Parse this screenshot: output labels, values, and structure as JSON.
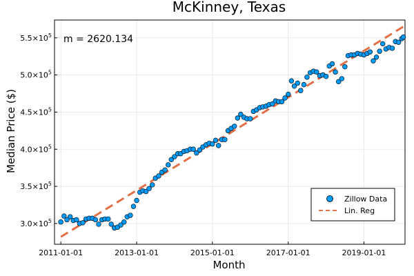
{
  "chart_data": {
    "type": "scatter",
    "title": "McKinney, Texas",
    "xlabel": "Month",
    "ylabel": "Median Price ($)",
    "xlim": [
      "2010-11-01",
      "2020-02-01"
    ],
    "ylim": [
      272000,
      574000
    ],
    "grid": true,
    "legend_position": "bottom-right",
    "x_ticks": [
      "2011-01-01",
      "2013-01-01",
      "2015-01-01",
      "2017-01-01",
      "2019-01-01"
    ],
    "y_ticks": [
      {
        "value": 300000,
        "mantissa": "3.0",
        "exp": "5"
      },
      {
        "value": 350000,
        "mantissa": "3.5",
        "exp": "5"
      },
      {
        "value": 400000,
        "mantissa": "4.0",
        "exp": "5"
      },
      {
        "value": 450000,
        "mantissa": "4.5",
        "exp": "5"
      },
      {
        "value": 500000,
        "mantissa": "5.0",
        "exp": "5"
      },
      {
        "value": 550000,
        "mantissa": "5.5",
        "exp": "5"
      }
    ],
    "annotation": "m = 2620.134",
    "series": [
      {
        "name": "Zillow Data",
        "kind": "scatter",
        "color": "#009af9",
        "points": [
          [
            "2011-01-01",
            302000
          ],
          [
            "2011-02-01",
            310000
          ],
          [
            "2011-03-01",
            305000
          ],
          [
            "2011-04-01",
            309000
          ],
          [
            "2011-05-01",
            304000
          ],
          [
            "2011-06-01",
            305000
          ],
          [
            "2011-07-01",
            300000
          ],
          [
            "2011-08-01",
            301000
          ],
          [
            "2011-09-01",
            306000
          ],
          [
            "2011-10-01",
            307000
          ],
          [
            "2011-11-01",
            307000
          ],
          [
            "2011-12-01",
            305000
          ],
          [
            "2012-01-01",
            299000
          ],
          [
            "2012-02-01",
            305000
          ],
          [
            "2012-03-01",
            306000
          ],
          [
            "2012-04-01",
            306000
          ],
          [
            "2012-05-01",
            299000
          ],
          [
            "2012-06-01",
            294000
          ],
          [
            "2012-07-01",
            295000
          ],
          [
            "2012-08-01",
            298000
          ],
          [
            "2012-09-01",
            302000
          ],
          [
            "2012-10-01",
            309000
          ],
          [
            "2012-11-01",
            311000
          ],
          [
            "2012-12-01",
            323000
          ],
          [
            "2013-01-01",
            331000
          ],
          [
            "2013-02-01",
            342000
          ],
          [
            "2013-03-01",
            344000
          ],
          [
            "2013-04-01",
            343000
          ],
          [
            "2013-05-01",
            347000
          ],
          [
            "2013-06-01",
            352000
          ],
          [
            "2013-07-01",
            361000
          ],
          [
            "2013-08-01",
            364000
          ],
          [
            "2013-09-01",
            369000
          ],
          [
            "2013-10-01",
            372000
          ],
          [
            "2013-11-01",
            379000
          ],
          [
            "2013-12-01",
            386000
          ],
          [
            "2014-01-01",
            390000
          ],
          [
            "2014-02-01",
            394000
          ],
          [
            "2014-03-01",
            394000
          ],
          [
            "2014-04-01",
            397000
          ],
          [
            "2014-05-01",
            398000
          ],
          [
            "2014-06-01",
            400000
          ],
          [
            "2014-07-01",
            400000
          ],
          [
            "2014-08-01",
            395000
          ],
          [
            "2014-09-01",
            399000
          ],
          [
            "2014-10-01",
            403000
          ],
          [
            "2014-11-01",
            406000
          ],
          [
            "2014-12-01",
            408000
          ],
          [
            "2015-01-01",
            407000
          ],
          [
            "2015-02-01",
            412000
          ],
          [
            "2015-03-01",
            405000
          ],
          [
            "2015-04-01",
            413000
          ],
          [
            "2015-05-01",
            413000
          ],
          [
            "2015-06-01",
            425000
          ],
          [
            "2015-07-01",
            428000
          ],
          [
            "2015-08-01",
            431000
          ],
          [
            "2015-09-01",
            442000
          ],
          [
            "2015-10-01",
            447000
          ],
          [
            "2015-11-01",
            443000
          ],
          [
            "2015-12-01",
            441000
          ],
          [
            "2016-01-01",
            441000
          ],
          [
            "2016-02-01",
            451000
          ],
          [
            "2016-03-01",
            453000
          ],
          [
            "2016-04-01",
            456000
          ],
          [
            "2016-05-01",
            457000
          ],
          [
            "2016-06-01",
            458000
          ],
          [
            "2016-07-01",
            460000
          ],
          [
            "2016-08-01",
            461000
          ],
          [
            "2016-09-01",
            465000
          ],
          [
            "2016-10-01",
            464000
          ],
          [
            "2016-11-01",
            464000
          ],
          [
            "2016-12-01",
            469000
          ],
          [
            "2017-01-01",
            474000
          ],
          [
            "2017-02-01",
            492000
          ],
          [
            "2017-03-01",
            485000
          ],
          [
            "2017-04-01",
            489000
          ],
          [
            "2017-05-01",
            479000
          ],
          [
            "2017-06-01",
            487000
          ],
          [
            "2017-07-01",
            497000
          ],
          [
            "2017-08-01",
            503000
          ],
          [
            "2017-09-01",
            505000
          ],
          [
            "2017-10-01",
            504000
          ],
          [
            "2017-11-01",
            499000
          ],
          [
            "2017-12-01",
            500000
          ],
          [
            "2018-01-01",
            498000
          ],
          [
            "2018-02-01",
            512000
          ],
          [
            "2018-03-01",
            515000
          ],
          [
            "2018-04-01",
            504000
          ],
          [
            "2018-05-01",
            491000
          ],
          [
            "2018-06-01",
            495000
          ],
          [
            "2018-07-01",
            511000
          ],
          [
            "2018-08-01",
            526000
          ],
          [
            "2018-09-01",
            527000
          ],
          [
            "2018-10-01",
            527000
          ],
          [
            "2018-11-01",
            529000
          ],
          [
            "2018-12-01",
            528000
          ],
          [
            "2019-01-01",
            527000
          ],
          [
            "2019-02-01",
            529000
          ],
          [
            "2019-03-01",
            531000
          ],
          [
            "2019-04-01",
            519000
          ],
          [
            "2019-05-01",
            524000
          ],
          [
            "2019-06-01",
            532000
          ],
          [
            "2019-07-01",
            542000
          ],
          [
            "2019-08-01",
            535000
          ],
          [
            "2019-09-01",
            537000
          ],
          [
            "2019-10-01",
            536000
          ],
          [
            "2019-11-01",
            545000
          ],
          [
            "2019-12-01",
            544000
          ],
          [
            "2020-01-01",
            549000
          ],
          [
            "2020-01-15",
            551000
          ]
        ]
      },
      {
        "name": "Lin. Reg",
        "kind": "line",
        "color": "#e26f46",
        "dash": "dashed",
        "points": [
          [
            "2011-01-01",
            282000
          ],
          [
            "2020-01-15",
            565000
          ]
        ]
      }
    ]
  }
}
